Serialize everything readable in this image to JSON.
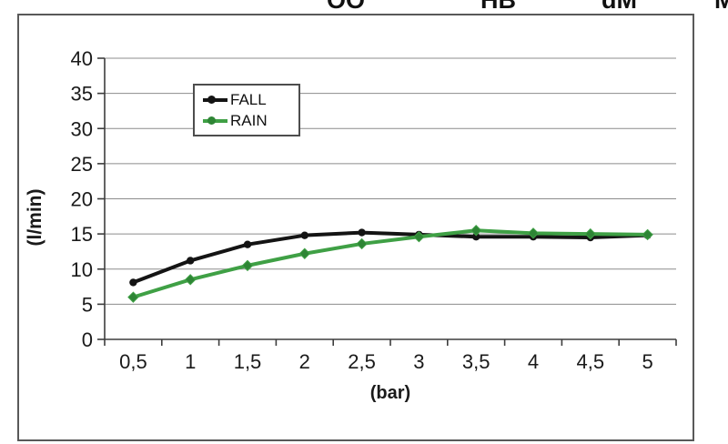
{
  "top_fragments": [
    {
      "text": "OO"
    },
    {
      "text": "HB"
    },
    {
      "text": "dM"
    },
    {
      "text": "M"
    }
  ],
  "chart_data": {
    "type": "line",
    "title": "",
    "xlabel": "(bar)",
    "ylabel": "(l/min)",
    "x": [
      0.5,
      1,
      1.5,
      2,
      2.5,
      3,
      3.5,
      4,
      4.5,
      5
    ],
    "x_tick_labels": [
      "0,5",
      "1",
      "1,5",
      "2",
      "2,5",
      "3",
      "3,5",
      "4",
      "4,5",
      "5"
    ],
    "y_ticks": [
      0,
      5,
      10,
      15,
      20,
      25,
      30,
      35,
      40
    ],
    "ylim": [
      0,
      40
    ],
    "grid": "horizontal-gray",
    "legend_position": "upper-left-inside",
    "series": [
      {
        "name": "FALL",
        "color": "#141414",
        "marker": "circle",
        "values": [
          8.1,
          11.2,
          13.5,
          14.8,
          15.2,
          14.9,
          14.6,
          14.6,
          14.5,
          14.8
        ]
      },
      {
        "name": "RAIN",
        "color": "#3fa045",
        "marker": "diamond",
        "marker_fill": "#2e8535",
        "values": [
          6.0,
          8.5,
          10.5,
          12.2,
          13.6,
          14.6,
          15.5,
          15.1,
          15.0,
          14.9
        ]
      }
    ]
  },
  "colors": {
    "grid": "#8c8c8c",
    "axis": "#3d3d3d",
    "tick_text": "#1a1a1a",
    "figure_border": "#595959"
  }
}
